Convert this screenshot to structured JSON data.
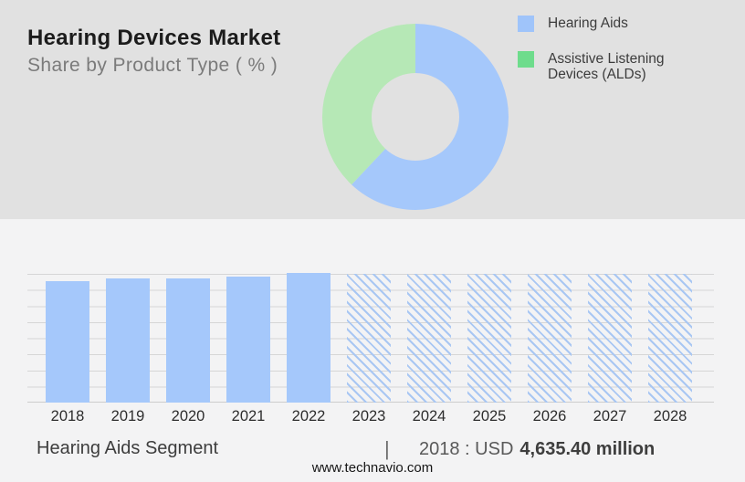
{
  "header": {
    "title": "Hearing Devices Market",
    "subtitle": "Share by Product Type ( % )"
  },
  "legend": {
    "items": [
      {
        "label": "Hearing Aids",
        "color": "#9fc4fa"
      },
      {
        "label": "Assistive Listening Devices (ALDs)",
        "color": "#6edc8c"
      }
    ]
  },
  "chart_data": [
    {
      "type": "pie",
      "subtype": "donut",
      "title": "Share by Product Type ( % )",
      "labels": [
        "Hearing Aids",
        "Assistive Listening Devices (ALDs)"
      ],
      "values": [
        62,
        38
      ],
      "unit": "%",
      "colors": [
        "#a5c8fb",
        "#b6e8b6"
      ],
      "legend_position": "right",
      "note": "No numeric data labels shown; shares estimated from arc angles"
    },
    {
      "type": "bar",
      "title": "Hearing Aids Segment",
      "categories": [
        "2018",
        "2019",
        "2020",
        "2021",
        "2022",
        "2023",
        "2024",
        "2025",
        "2026",
        "2027",
        "2028"
      ],
      "series": [
        {
          "name": "Hearing Aids segment size (relative height, no y-axis shown)",
          "values": [
            0.943,
            0.965,
            0.965,
            0.976,
            1.004,
            1.0,
            1.0,
            1.0,
            1.0,
            1.0,
            1.0
          ]
        }
      ],
      "forecast_from": "2023",
      "known_point": "2018 : USD 4,635.40 million",
      "bar_color": "#a5c8fb",
      "forecast_hatch_color": "#a9c7f3",
      "grid": true,
      "legend_position": "none"
    }
  ],
  "footer": {
    "segment_label": "Hearing Aids Segment",
    "separator": "|",
    "value_prefix": "2018 : USD",
    "value_bold": "4,635.40 million",
    "website": "www.technavio.com"
  },
  "colors": {
    "header_background": "#e1e1e1",
    "body_background": "#f3f3f4",
    "gridline": "#d6d6d6"
  }
}
